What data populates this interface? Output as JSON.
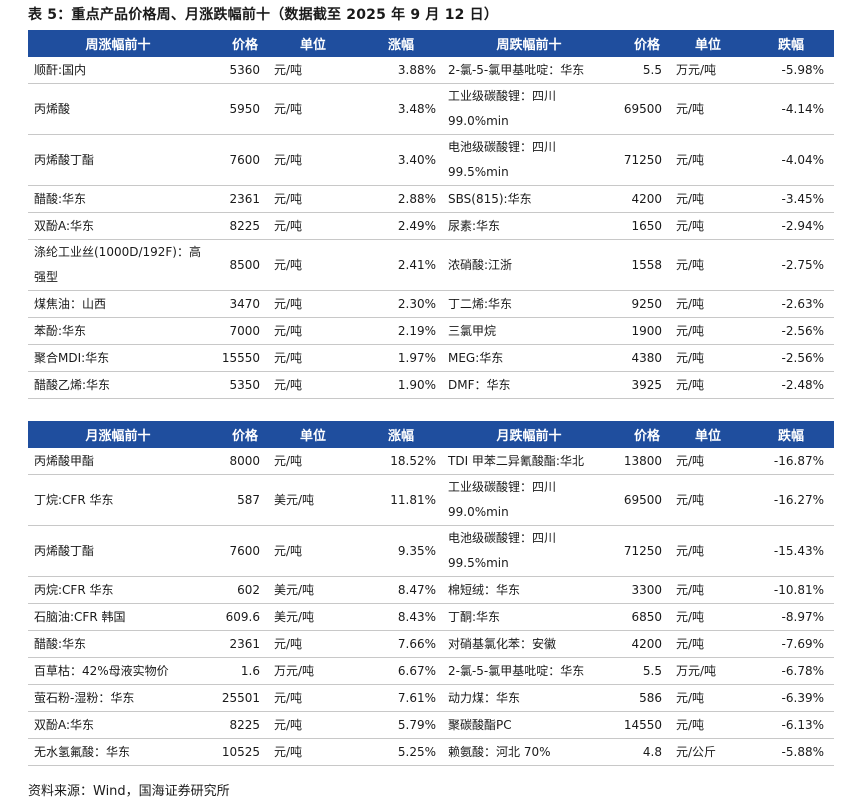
{
  "title": "表 5：重点产品价格周、月涨跌幅前十（数据截至 2025 年 9 月 12 日）",
  "colors": {
    "header_bg": "#1f4e9e",
    "header_fg": "#ffffff",
    "row_border": "#c8c8c8"
  },
  "weekly": {
    "headers": [
      "周涨幅前十",
      "价格",
      "单位",
      "涨幅",
      "周跌幅前十",
      "价格",
      "单位",
      "跌幅"
    ],
    "rows": [
      [
        "顺酐:国内",
        "5360",
        "元/吨",
        "3.88%",
        "2-氯-5-氯甲基吡啶：华东",
        "5.5",
        "万元/吨",
        "-5.98%"
      ],
      [
        "丙烯酸",
        "5950",
        "元/吨",
        "3.48%",
        "工业级碳酸锂：四川 99.0%min",
        "69500",
        "元/吨",
        "-4.14%"
      ],
      [
        "丙烯酸丁酯",
        "7600",
        "元/吨",
        "3.40%",
        "电池级碳酸锂：四川 99.5%min",
        "71250",
        "元/吨",
        "-4.04%"
      ],
      [
        "醋酸:华东",
        "2361",
        "元/吨",
        "2.88%",
        "SBS(815):华东",
        "4200",
        "元/吨",
        "-3.45%"
      ],
      [
        "双酚A:华东",
        "8225",
        "元/吨",
        "2.49%",
        "尿素:华东",
        "1650",
        "元/吨",
        "-2.94%"
      ],
      [
        "涤纶工业丝(1000D/192F)：高强型",
        "8500",
        "元/吨",
        "2.41%",
        "浓硝酸:江浙",
        "1558",
        "元/吨",
        "-2.75%"
      ],
      [
        "煤焦油：山西",
        "3470",
        "元/吨",
        "2.30%",
        "丁二烯:华东",
        "9250",
        "元/吨",
        "-2.63%"
      ],
      [
        "苯酚:华东",
        "7000",
        "元/吨",
        "2.19%",
        "三氯甲烷",
        "1900",
        "元/吨",
        "-2.56%"
      ],
      [
        "聚合MDI:华东",
        "15550",
        "元/吨",
        "1.97%",
        "MEG:华东",
        "4380",
        "元/吨",
        "-2.56%"
      ],
      [
        "醋酸乙烯:华东",
        "5350",
        "元/吨",
        "1.90%",
        "DMF：华东",
        "3925",
        "元/吨",
        "-2.48%"
      ]
    ]
  },
  "monthly": {
    "headers": [
      "月涨幅前十",
      "价格",
      "单位",
      "涨幅",
      "月跌幅前十",
      "价格",
      "单位",
      "跌幅"
    ],
    "rows": [
      [
        "丙烯酸甲酯",
        "8000",
        "元/吨",
        "18.52%",
        "TDI 甲苯二异氰酸酯:华北",
        "13800",
        "元/吨",
        "-16.87%"
      ],
      [
        "丁烷:CFR 华东",
        "587",
        "美元/吨",
        "11.81%",
        "工业级碳酸锂：四川 99.0%min",
        "69500",
        "元/吨",
        "-16.27%"
      ],
      [
        "丙烯酸丁酯",
        "7600",
        "元/吨",
        "9.35%",
        "电池级碳酸锂：四川 99.5%min",
        "71250",
        "元/吨",
        "-15.43%"
      ],
      [
        "丙烷:CFR 华东",
        "602",
        "美元/吨",
        "8.47%",
        "棉短绒：华东",
        "3300",
        "元/吨",
        "-10.81%"
      ],
      [
        "石脑油:CFR 韩国",
        "609.6",
        "美元/吨",
        "8.43%",
        "丁酮:华东",
        "6850",
        "元/吨",
        "-8.97%"
      ],
      [
        "醋酸:华东",
        "2361",
        "元/吨",
        "7.66%",
        "对硝基氯化苯：安徽",
        "4200",
        "元/吨",
        "-7.69%"
      ],
      [
        "百草枯：42%母液实物价",
        "1.6",
        "万元/吨",
        "6.67%",
        "2-氯-5-氯甲基吡啶：华东",
        "5.5",
        "万元/吨",
        "-6.78%"
      ],
      [
        "萤石粉-湿粉：华东",
        "25501",
        "元/吨",
        "7.61%",
        "动力煤：华东",
        "586",
        "元/吨",
        "-6.39%"
      ],
      [
        "双酚A:华东",
        "8225",
        "元/吨",
        "5.79%",
        "聚碳酸酯PC",
        "14550",
        "元/吨",
        "-6.13%"
      ],
      [
        "无水氢氟酸：华东",
        "10525",
        "元/吨",
        "5.25%",
        "赖氨酸：河北 70%",
        "4.8",
        "元/公斤",
        "-5.88%"
      ]
    ]
  },
  "source": "资料来源：Wind，国海证券研究所"
}
